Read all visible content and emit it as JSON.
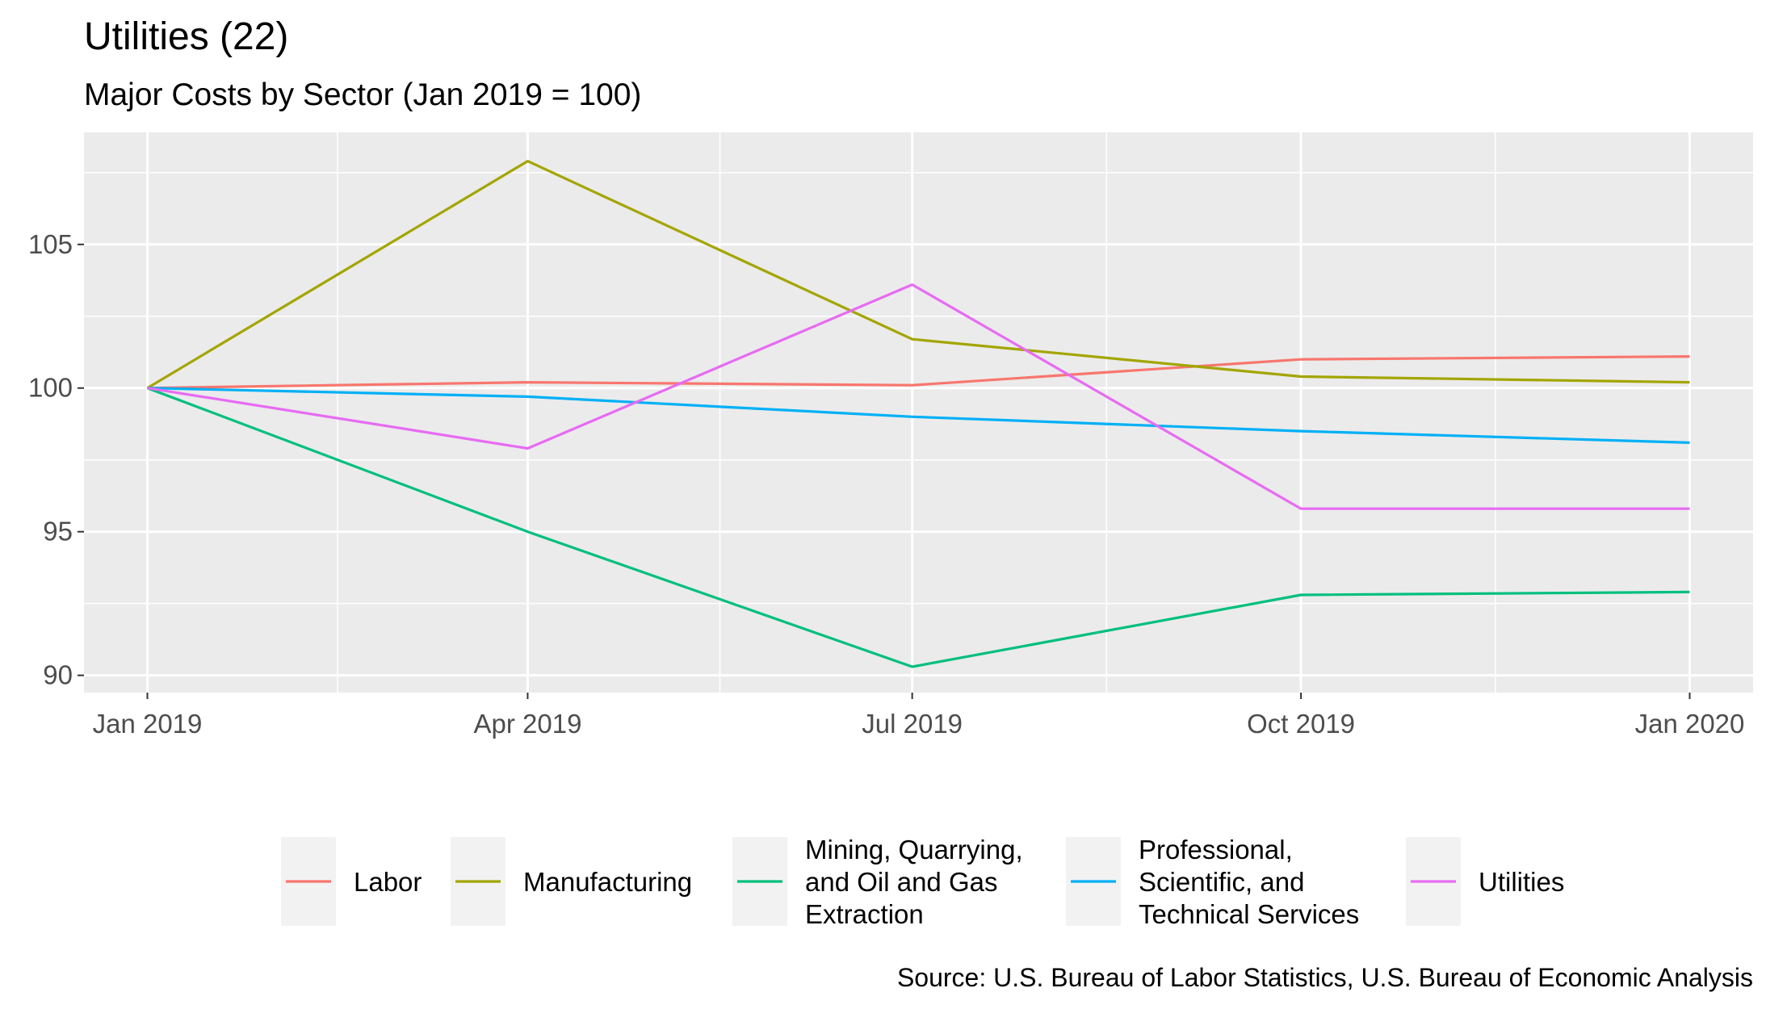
{
  "chart_data": {
    "type": "line",
    "title": "Utilities (22)",
    "subtitle": "Major Costs by Sector (Jan 2019 = 100)",
    "caption": "Source: U.S. Bureau of Labor Statistics, U.S. Bureau of Economic Analysis",
    "xlabel": "",
    "ylabel": "",
    "x": [
      "2019-01-01",
      "2019-04-01",
      "2019-07-01",
      "2019-10-01",
      "2020-01-01"
    ],
    "x_ticks": [
      {
        "value": "2019-01-01",
        "label": "Jan 2019"
      },
      {
        "value": "2019-04-01",
        "label": "Apr 2019"
      },
      {
        "value": "2019-07-01",
        "label": "Jul 2019"
      },
      {
        "value": "2019-10-01",
        "label": "Oct 2019"
      },
      {
        "value": "2020-01-01",
        "label": "Jan 2020"
      }
    ],
    "xlim": [
      "2018-12-17",
      "2020-01-16"
    ],
    "y_ticks": [
      90,
      95,
      100,
      105
    ],
    "y_tick_labels": [
      "90",
      "95",
      "100",
      "105"
    ],
    "ylim": [
      89.4,
      108.9
    ],
    "grid": true,
    "legend_position": "bottom",
    "series": [
      {
        "name": "Labor",
        "color": "#F8766D",
        "values": [
          100,
          100.2,
          100.1,
          101.0,
          101.1
        ]
      },
      {
        "name": "Manufacturing",
        "color": "#A3A500",
        "values": [
          100,
          107.9,
          101.7,
          100.4,
          100.2
        ]
      },
      {
        "name": "Mining, Quarrying, and Oil and Gas Extraction",
        "label_lines": [
          "Mining, Quarrying,",
          "and Oil and Gas",
          "Extraction"
        ],
        "color": "#00BF7D",
        "values": [
          100,
          95.0,
          90.3,
          92.8,
          92.9
        ]
      },
      {
        "name": "Professional, Scientific, and Technical Services",
        "label_lines": [
          "Professional,",
          "Scientific, and",
          "Technical Services"
        ],
        "color": "#00B0F6",
        "values": [
          100,
          99.7,
          99.0,
          98.5,
          98.1
        ]
      },
      {
        "name": "Utilities",
        "color": "#E76BF3",
        "values": [
          100,
          97.9,
          103.6,
          95.8,
          95.8
        ]
      }
    ]
  }
}
